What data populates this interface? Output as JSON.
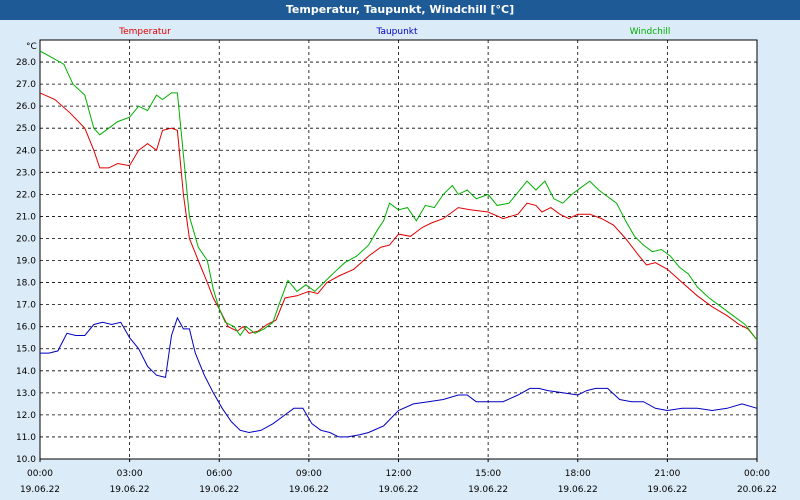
{
  "window_title": "Temperatur, Taupunkt, Windchill [°C]",
  "chart_data": {
    "type": "line",
    "title": "Temperatur, Taupunkt, Windchill [°C]",
    "ylabel": "°C",
    "ylim": [
      10.0,
      29.0
    ],
    "yticks": [
      10.0,
      11.0,
      12.0,
      13.0,
      14.0,
      15.0,
      16.0,
      17.0,
      18.0,
      19.0,
      20.0,
      21.0,
      22.0,
      23.0,
      24.0,
      25.0,
      26.0,
      27.0,
      28.0
    ],
    "x_unit": "hours since 19.06.22 00:00",
    "xlim": [
      0,
      24
    ],
    "xticks": [
      {
        "time": "00:00",
        "date": "19.06.22"
      },
      {
        "time": "03:00",
        "date": "19.06.22"
      },
      {
        "time": "06:00",
        "date": "19.06.22"
      },
      {
        "time": "09:00",
        "date": "19.06.22"
      },
      {
        "time": "12:00",
        "date": "19.06.22"
      },
      {
        "time": "15:00",
        "date": "19.06.22"
      },
      {
        "time": "18:00",
        "date": "19.06.22"
      },
      {
        "time": "21:00",
        "date": "19.06.22"
      },
      {
        "time": "00:00",
        "date": "20.06.22"
      }
    ],
    "grid": true,
    "legend_position": "top",
    "series": [
      {
        "name": "Temperatur",
        "color": "#e00000",
        "points": [
          [
            0,
            26.6
          ],
          [
            0.5,
            26.3
          ],
          [
            1,
            25.7
          ],
          [
            1.5,
            25.0
          ],
          [
            1.8,
            24.0
          ],
          [
            2.0,
            23.2
          ],
          [
            2.3,
            23.2
          ],
          [
            2.6,
            23.4
          ],
          [
            3,
            23.3
          ],
          [
            3.3,
            24.0
          ],
          [
            3.6,
            24.3
          ],
          [
            3.9,
            24.0
          ],
          [
            4.1,
            24.9
          ],
          [
            4.4,
            25.0
          ],
          [
            4.6,
            24.9
          ],
          [
            4.8,
            22.0
          ],
          [
            5.0,
            20.0
          ],
          [
            5.3,
            19.0
          ],
          [
            5.6,
            18.0
          ],
          [
            5.8,
            17.3
          ],
          [
            6.0,
            16.8
          ],
          [
            6.3,
            16.0
          ],
          [
            6.6,
            15.8
          ],
          [
            6.8,
            16.0
          ],
          [
            7.0,
            15.7
          ],
          [
            7.3,
            15.8
          ],
          [
            7.6,
            16.1
          ],
          [
            7.9,
            16.3
          ],
          [
            8.2,
            17.3
          ],
          [
            8.6,
            17.4
          ],
          [
            9.0,
            17.6
          ],
          [
            9.3,
            17.5
          ],
          [
            9.6,
            18.0
          ],
          [
            10.0,
            18.3
          ],
          [
            10.5,
            18.6
          ],
          [
            11.0,
            19.2
          ],
          [
            11.4,
            19.6
          ],
          [
            11.7,
            19.7
          ],
          [
            12.0,
            20.2
          ],
          [
            12.4,
            20.1
          ],
          [
            12.8,
            20.5
          ],
          [
            13.1,
            20.7
          ],
          [
            13.5,
            20.9
          ],
          [
            14.0,
            21.4
          ],
          [
            14.4,
            21.3
          ],
          [
            15.0,
            21.2
          ],
          [
            15.5,
            20.9
          ],
          [
            16.0,
            21.1
          ],
          [
            16.3,
            21.6
          ],
          [
            16.6,
            21.5
          ],
          [
            16.8,
            21.2
          ],
          [
            17.1,
            21.4
          ],
          [
            17.4,
            21.1
          ],
          [
            17.7,
            20.9
          ],
          [
            18.0,
            21.1
          ],
          [
            18.4,
            21.1
          ],
          [
            18.8,
            20.9
          ],
          [
            19.2,
            20.6
          ],
          [
            19.6,
            20.0
          ],
          [
            20.0,
            19.3
          ],
          [
            20.3,
            18.8
          ],
          [
            20.6,
            18.9
          ],
          [
            21.0,
            18.6
          ],
          [
            21.5,
            18.0
          ],
          [
            22.0,
            17.4
          ],
          [
            22.5,
            16.9
          ],
          [
            23.0,
            16.5
          ],
          [
            23.4,
            16.1
          ],
          [
            23.7,
            15.9
          ],
          [
            24.0,
            15.4
          ]
        ]
      },
      {
        "name": "Taupunkt",
        "color": "#0000c0",
        "points": [
          [
            0,
            14.8
          ],
          [
            0.3,
            14.8
          ],
          [
            0.6,
            14.9
          ],
          [
            0.9,
            15.7
          ],
          [
            1.2,
            15.6
          ],
          [
            1.5,
            15.6
          ],
          [
            1.8,
            16.1
          ],
          [
            2.1,
            16.2
          ],
          [
            2.4,
            16.1
          ],
          [
            2.7,
            16.2
          ],
          [
            3.0,
            15.5
          ],
          [
            3.3,
            15.0
          ],
          [
            3.6,
            14.2
          ],
          [
            3.9,
            13.8
          ],
          [
            4.2,
            13.7
          ],
          [
            4.4,
            15.6
          ],
          [
            4.6,
            16.4
          ],
          [
            4.8,
            15.9
          ],
          [
            5.0,
            15.9
          ],
          [
            5.2,
            14.8
          ],
          [
            5.5,
            13.8
          ],
          [
            5.8,
            13.0
          ],
          [
            6.1,
            12.3
          ],
          [
            6.4,
            11.7
          ],
          [
            6.7,
            11.3
          ],
          [
            7.0,
            11.2
          ],
          [
            7.4,
            11.3
          ],
          [
            7.8,
            11.6
          ],
          [
            8.2,
            12.0
          ],
          [
            8.5,
            12.3
          ],
          [
            8.8,
            12.3
          ],
          [
            9.1,
            11.6
          ],
          [
            9.4,
            11.3
          ],
          [
            9.7,
            11.2
          ],
          [
            10.0,
            11.0
          ],
          [
            10.3,
            11.0
          ],
          [
            10.7,
            11.1
          ],
          [
            11.0,
            11.2
          ],
          [
            11.5,
            11.5
          ],
          [
            12.0,
            12.2
          ],
          [
            12.5,
            12.5
          ],
          [
            13.0,
            12.6
          ],
          [
            13.5,
            12.7
          ],
          [
            14.0,
            12.9
          ],
          [
            14.3,
            12.9
          ],
          [
            14.6,
            12.6
          ],
          [
            15.0,
            12.6
          ],
          [
            15.5,
            12.6
          ],
          [
            16.0,
            12.9
          ],
          [
            16.4,
            13.2
          ],
          [
            16.7,
            13.2
          ],
          [
            17.0,
            13.1
          ],
          [
            17.5,
            13.0
          ],
          [
            18.0,
            12.9
          ],
          [
            18.3,
            13.1
          ],
          [
            18.6,
            13.2
          ],
          [
            19.0,
            13.2
          ],
          [
            19.4,
            12.7
          ],
          [
            19.8,
            12.6
          ],
          [
            20.2,
            12.6
          ],
          [
            20.6,
            12.3
          ],
          [
            21.0,
            12.2
          ],
          [
            21.5,
            12.3
          ],
          [
            22.0,
            12.3
          ],
          [
            22.5,
            12.2
          ],
          [
            23.0,
            12.3
          ],
          [
            23.5,
            12.5
          ],
          [
            24.0,
            12.3
          ]
        ]
      },
      {
        "name": "Windchill",
        "color": "#00b000",
        "points": [
          [
            0,
            28.5
          ],
          [
            0.4,
            28.2
          ],
          [
            0.8,
            27.9
          ],
          [
            1.1,
            27.0
          ],
          [
            1.5,
            26.5
          ],
          [
            1.8,
            25.0
          ],
          [
            2.0,
            24.7
          ],
          [
            2.3,
            25.0
          ],
          [
            2.6,
            25.3
          ],
          [
            3.0,
            25.5
          ],
          [
            3.3,
            26.0
          ],
          [
            3.6,
            25.8
          ],
          [
            3.9,
            26.5
          ],
          [
            4.1,
            26.3
          ],
          [
            4.4,
            26.6
          ],
          [
            4.6,
            26.6
          ],
          [
            4.8,
            23.8
          ],
          [
            5.0,
            21.0
          ],
          [
            5.3,
            19.6
          ],
          [
            5.6,
            19.0
          ],
          [
            5.8,
            17.7
          ],
          [
            6.0,
            16.8
          ],
          [
            6.2,
            16.2
          ],
          [
            6.5,
            16.0
          ],
          [
            6.7,
            15.6
          ],
          [
            6.9,
            16.0
          ],
          [
            7.2,
            15.7
          ],
          [
            7.5,
            15.9
          ],
          [
            7.8,
            16.2
          ],
          [
            8.0,
            17.0
          ],
          [
            8.3,
            18.1
          ],
          [
            8.6,
            17.6
          ],
          [
            8.9,
            17.9
          ],
          [
            9.2,
            17.6
          ],
          [
            9.5,
            18.0
          ],
          [
            9.8,
            18.4
          ],
          [
            10.2,
            18.9
          ],
          [
            10.6,
            19.2
          ],
          [
            11.0,
            19.7
          ],
          [
            11.3,
            20.4
          ],
          [
            11.5,
            20.8
          ],
          [
            11.7,
            21.6
          ],
          [
            12.0,
            21.3
          ],
          [
            12.3,
            21.4
          ],
          [
            12.6,
            20.8
          ],
          [
            12.9,
            21.5
          ],
          [
            13.2,
            21.4
          ],
          [
            13.5,
            22.0
          ],
          [
            13.8,
            22.4
          ],
          [
            14.0,
            22.0
          ],
          [
            14.3,
            22.2
          ],
          [
            14.6,
            21.8
          ],
          [
            15.0,
            22.0
          ],
          [
            15.3,
            21.5
          ],
          [
            15.7,
            21.6
          ],
          [
            16.0,
            22.1
          ],
          [
            16.3,
            22.6
          ],
          [
            16.6,
            22.2
          ],
          [
            16.9,
            22.6
          ],
          [
            17.2,
            21.8
          ],
          [
            17.5,
            21.6
          ],
          [
            17.8,
            22.0
          ],
          [
            18.1,
            22.3
          ],
          [
            18.4,
            22.6
          ],
          [
            18.7,
            22.2
          ],
          [
            19.0,
            21.9
          ],
          [
            19.3,
            21.6
          ],
          [
            19.6,
            20.8
          ],
          [
            19.9,
            20.1
          ],
          [
            20.2,
            19.7
          ],
          [
            20.5,
            19.4
          ],
          [
            20.8,
            19.5
          ],
          [
            21.1,
            19.2
          ],
          [
            21.4,
            18.7
          ],
          [
            21.7,
            18.4
          ],
          [
            22.0,
            17.8
          ],
          [
            22.4,
            17.3
          ],
          [
            22.8,
            16.9
          ],
          [
            23.2,
            16.5
          ],
          [
            23.6,
            16.1
          ],
          [
            24.0,
            15.4
          ]
        ]
      }
    ]
  }
}
